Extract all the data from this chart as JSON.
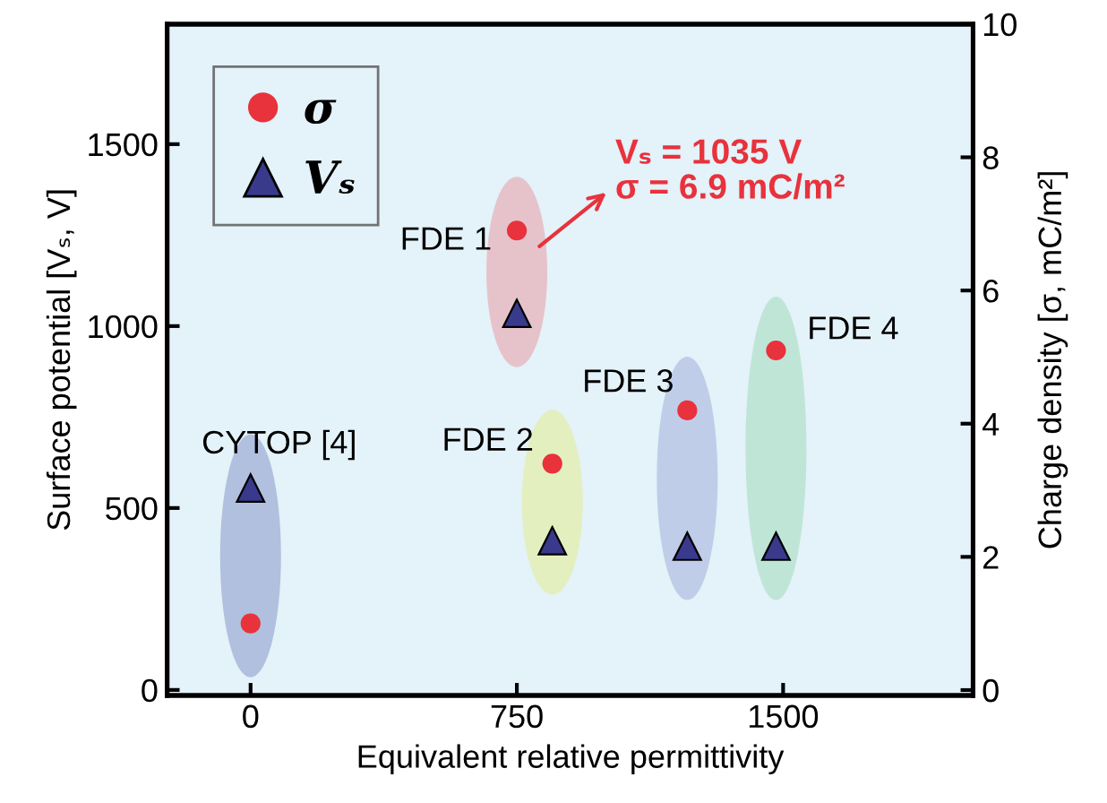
{
  "chart_data": {
    "type": "scatter",
    "xlabel": "Equivalent relative permittivity",
    "ylabel": "Surface potential [Vₛ, V]",
    "y2label": "Charge density [σ, mC/m²]",
    "x": [
      0,
      750,
      850,
      1230,
      1480
    ],
    "series": [
      {
        "name": "σ",
        "color": "#e8323c",
        "marker": "circle",
        "axis": "y2",
        "values": [
          1.0,
          6.9,
          3.4,
          4.2,
          5.1
        ]
      },
      {
        "name": "Vₛ",
        "color": "#3a3a8c",
        "marker": "triangle",
        "axis": "y",
        "values": [
          555,
          1035,
          410,
          395,
          395
        ]
      }
    ],
    "xlim": [
      -235,
      2035
    ],
    "xticks": [
      0,
      750,
      1500
    ],
    "ylim": [
      -15,
      1830
    ],
    "yticks": [
      0,
      500,
      1000,
      1500
    ],
    "y2lim": [
      -0.08,
      10
    ],
    "y2ticks": [
      0,
      2,
      4,
      6,
      8,
      10
    ],
    "annotations": [
      "CYTOP [4]",
      "FDE 1",
      "FDE 2",
      "FDE 3",
      "FDE 4",
      "Vₛ = 1035 V\nσ = 6.9 mC/m²"
    ],
    "grid": false,
    "legend": "top left"
  }
}
